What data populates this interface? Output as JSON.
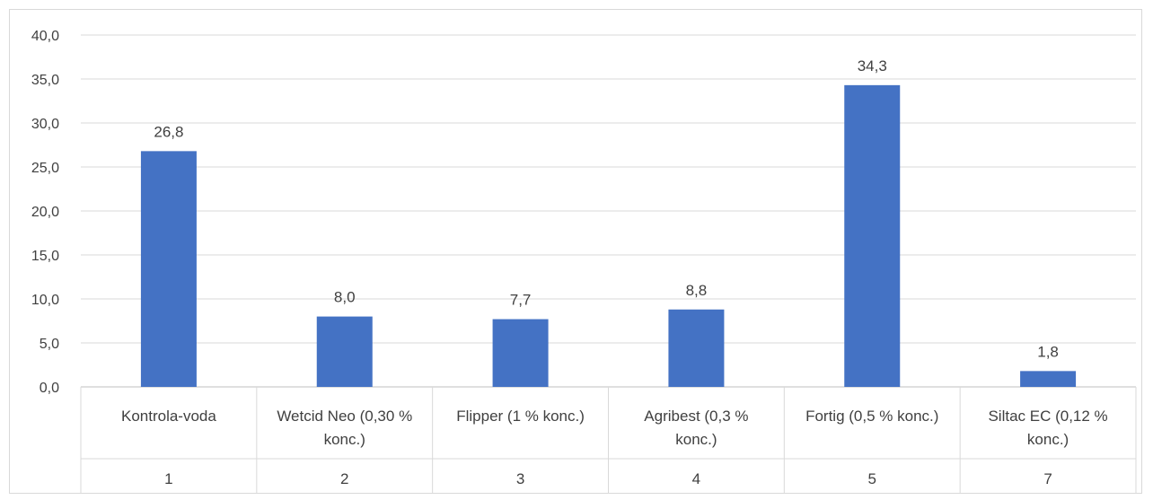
{
  "chart_data": {
    "type": "bar",
    "title": "",
    "xlabel": "",
    "ylabel": "",
    "ylim": [
      0,
      40
    ],
    "ytick_labels": [
      "0,0",
      "5,0",
      "10,0",
      "15,0",
      "20,0",
      "25,0",
      "30,0",
      "35,0",
      "40,0"
    ],
    "categories": [
      {
        "lines": [
          "Kontrola-voda"
        ],
        "number": "1"
      },
      {
        "lines": [
          "Wetcid Neo (0,30 %",
          "konc.)"
        ],
        "number": "2"
      },
      {
        "lines": [
          "Flipper (1 % konc.)"
        ],
        "number": "3"
      },
      {
        "lines": [
          "Agribest (0,3 %",
          "konc.)"
        ],
        "number": "4"
      },
      {
        "lines": [
          "Fortig (0,5 % konc.)"
        ],
        "number": "5"
      },
      {
        "lines": [
          "Siltac EC (0,12 %",
          "konc.)"
        ],
        "number": "7"
      }
    ],
    "values": [
      26.8,
      8.0,
      7.7,
      8.8,
      34.3,
      1.8
    ],
    "data_labels": [
      "26,8",
      "8,0",
      "7,7",
      "8,8",
      "34,3",
      "1,8"
    ],
    "bar_color": "#4472c4",
    "gridlines": true,
    "legend": "none"
  }
}
